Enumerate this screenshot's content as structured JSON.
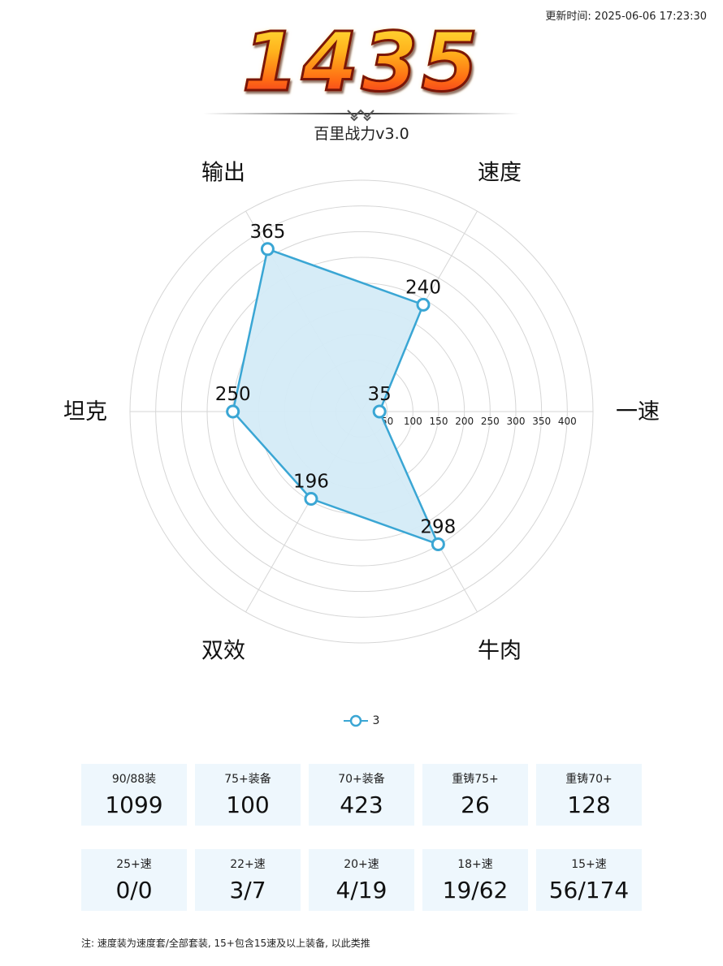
{
  "header": {
    "update_time": "更新时间: 2025-06-06 17:23:30",
    "score": "1435",
    "subtitle": "百里战力v3.0"
  },
  "chart_data": {
    "type": "radar",
    "axes": [
      "一速",
      "速度",
      "输出",
      "坦克",
      "双效",
      "牛肉"
    ],
    "series": [
      {
        "name": "3",
        "values": [
          35,
          240,
          365,
          250,
          196,
          298
        ],
        "color": "#3aa6d4",
        "fill": "#d4ebf7"
      }
    ],
    "radial_ticks": [
      50,
      100,
      150,
      200,
      250,
      300,
      350,
      400
    ],
    "rmax": 450,
    "grid": true,
    "legend": "bottom-center"
  },
  "stats_row1": [
    {
      "label": "90/88装",
      "value": "1099"
    },
    {
      "label": "75+装备",
      "value": "100"
    },
    {
      "label": "70+装备",
      "value": "423"
    },
    {
      "label": "重铸75+",
      "value": "26"
    },
    {
      "label": "重铸70+",
      "value": "128"
    }
  ],
  "stats_row2": [
    {
      "label": "25+速",
      "value": "0/0"
    },
    {
      "label": "22+速",
      "value": "3/7"
    },
    {
      "label": "20+速",
      "value": "4/19"
    },
    {
      "label": "18+速",
      "value": "19/62"
    },
    {
      "label": "15+速",
      "value": "56/174"
    }
  ],
  "note": "注: 速度装为速度套/全部套装, 15+包含15速及以上装备, 以此类推"
}
